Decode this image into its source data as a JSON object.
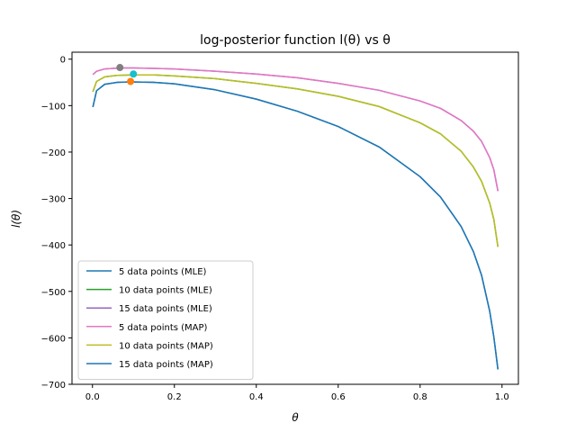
{
  "chart_data": {
    "type": "line",
    "title": "log-posterior function l(θ) vs θ",
    "xlabel": "θ",
    "ylabel": "l(θ)",
    "xlim": [
      -0.05,
      1.04
    ],
    "ylim": [
      -700,
      15
    ],
    "xticks": [
      0.0,
      0.2,
      0.4,
      0.6,
      0.8,
      1.0
    ],
    "xtick_labels": [
      "0.0",
      "0.2",
      "0.4",
      "0.6",
      "0.8",
      "1.0"
    ],
    "yticks": [
      0,
      -100,
      -200,
      -300,
      -400,
      -500,
      -600,
      -700
    ],
    "ytick_labels": [
      "0",
      "−100",
      "−200",
      "−300",
      "−400",
      "−500",
      "−600",
      "−700"
    ],
    "grid": false,
    "legend_position": "lower-left",
    "series": [
      {
        "name": "5 data points (MLE)",
        "color": "#1f77b4",
        "x": [
          0.001,
          0.01,
          0.03,
          0.06,
          0.093,
          0.15,
          0.2,
          0.3,
          0.4,
          0.5,
          0.6,
          0.7,
          0.8,
          0.85,
          0.9,
          0.93,
          0.95,
          0.97,
          0.98,
          0.99
        ],
        "y": [
          -103,
          -68,
          -54,
          -50,
          -49,
          -50,
          -53,
          -66,
          -86,
          -112,
          -145,
          -189,
          -253,
          -297,
          -360,
          -414,
          -465,
          -543,
          -598,
          -668
        ]
      },
      {
        "name": "10 data points (MLE)",
        "color": "#2ca02c",
        "x": [
          0.001,
          0.01,
          0.03,
          0.06,
          0.1,
          0.15,
          0.2,
          0.3,
          0.4,
          0.5,
          0.6,
          0.7,
          0.8,
          0.85,
          0.9,
          0.93,
          0.95,
          0.97,
          0.98,
          0.99
        ],
        "y": [
          -70,
          -48,
          -38,
          -35,
          -34,
          -34,
          -36,
          -42,
          -52,
          -64,
          -80,
          -102,
          -137,
          -161,
          -198,
          -232,
          -263,
          -310,
          -345,
          -404
        ]
      },
      {
        "name": "15 data points (MLE)",
        "color": "#9467bd",
        "x": [
          0.001,
          0.01,
          0.03,
          0.07,
          0.1,
          0.15,
          0.2,
          0.3,
          0.4,
          0.5,
          0.6,
          0.7,
          0.8,
          0.85,
          0.9,
          0.93,
          0.95,
          0.97,
          0.98,
          0.99
        ],
        "y": [
          -33,
          -26,
          -21,
          -19,
          -19,
          -20,
          -21,
          -26,
          -32,
          -40,
          -52,
          -67,
          -90,
          -106,
          -132,
          -155,
          -177,
          -212,
          -238,
          -284
        ]
      },
      {
        "name": "5 data points (MAP)",
        "color": "#e377c2",
        "x": [
          0.001,
          0.01,
          0.03,
          0.07,
          0.1,
          0.15,
          0.2,
          0.3,
          0.4,
          0.5,
          0.6,
          0.7,
          0.8,
          0.85,
          0.9,
          0.93,
          0.95,
          0.97,
          0.98,
          0.99
        ],
        "y": [
          -33,
          -26,
          -21,
          -19,
          -19,
          -20,
          -21,
          -26,
          -32,
          -40,
          -52,
          -67,
          -90,
          -106,
          -132,
          -155,
          -177,
          -212,
          -238,
          -284
        ]
      },
      {
        "name": "10 data points (MAP)",
        "color": "#bcbd22",
        "x": [
          0.001,
          0.01,
          0.03,
          0.06,
          0.1,
          0.15,
          0.2,
          0.3,
          0.4,
          0.5,
          0.6,
          0.7,
          0.8,
          0.85,
          0.9,
          0.93,
          0.95,
          0.97,
          0.98,
          0.99
        ],
        "y": [
          -70,
          -48,
          -38,
          -35,
          -34,
          -34,
          -36,
          -42,
          -52,
          -64,
          -80,
          -102,
          -137,
          -161,
          -198,
          -232,
          -263,
          -310,
          -345,
          -404
        ]
      },
      {
        "name": "15 data points (MAP)",
        "color": "#1f77b4",
        "x": [
          0.001,
          0.01,
          0.03,
          0.06,
          0.093,
          0.15,
          0.2,
          0.3,
          0.4,
          0.5,
          0.6,
          0.7,
          0.8,
          0.85,
          0.9,
          0.93,
          0.95,
          0.97,
          0.98,
          0.99
        ],
        "y": [
          -103,
          -68,
          -54,
          -50,
          -49,
          -50,
          -53,
          -66,
          -86,
          -112,
          -145,
          -189,
          -253,
          -297,
          -360,
          -414,
          -465,
          -543,
          -598,
          -668
        ]
      }
    ],
    "markers": [
      {
        "x": 0.067,
        "y": -18,
        "color": "#7f7f7f"
      },
      {
        "x": 0.1,
        "y": -32,
        "color": "#17becf"
      },
      {
        "x": 0.093,
        "y": -48,
        "color": "#ff7f0e"
      }
    ]
  }
}
